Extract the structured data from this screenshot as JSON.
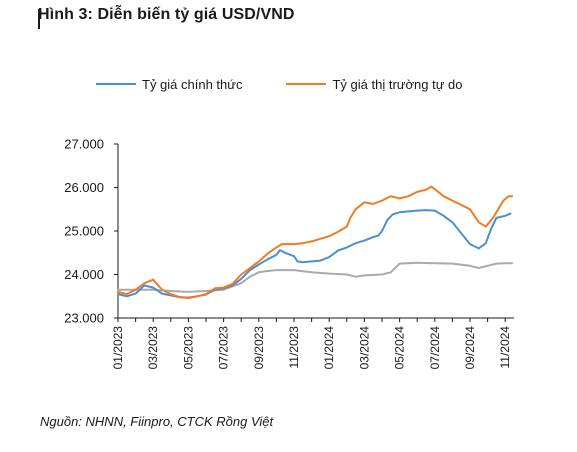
{
  "header": {
    "title": "Hình 3: Diễn biến tỷ giá USD/VND"
  },
  "source": "Nguồn: NHNN, Fiinpro, CTCK Rồng Việt",
  "colors": {
    "official": "#4a8fd0",
    "free_market": "#f07c22",
    "grey_series": "#aaaaaa",
    "axis": "#1a1a1a"
  },
  "chart_data": {
    "type": "line",
    "title": "Hình 3: Diễn biến tỷ giá USD/VND",
    "xlabel": "",
    "ylabel": "",
    "xlim": [
      0,
      22.5
    ],
    "ylim": [
      23000,
      27000
    ],
    "yticks": [
      "23.000",
      "24.000",
      "25.000",
      "26.000",
      "27.000"
    ],
    "ytick_values": [
      23000,
      24000,
      25000,
      26000,
      27000
    ],
    "xticks": [
      "01/2023",
      "03/2023",
      "05/2023",
      "07/2023",
      "09/2023",
      "11/2023",
      "01/2024",
      "03/2024",
      "05/2024",
      "07/2024",
      "09/2024",
      "11/2024"
    ],
    "xtick_values": [
      0,
      2,
      4,
      6,
      8,
      10,
      12,
      14,
      16,
      18,
      20,
      22
    ],
    "legend_position": "top",
    "grid": false,
    "series": [
      {
        "name": "Tỷ giá chính thức",
        "color": "#4a8fd0",
        "points": [
          [
            0,
            23550
          ],
          [
            0.5,
            23500
          ],
          [
            1,
            23560
          ],
          [
            1.5,
            23750
          ],
          [
            2,
            23700
          ],
          [
            2.5,
            23560
          ],
          [
            3,
            23520
          ],
          [
            3.5,
            23480
          ],
          [
            4,
            23470
          ],
          [
            4.5,
            23500
          ],
          [
            5,
            23540
          ],
          [
            5.5,
            23650
          ],
          [
            6,
            23680
          ],
          [
            6.5,
            23750
          ],
          [
            7,
            23900
          ],
          [
            7.5,
            24100
          ],
          [
            8,
            24230
          ],
          [
            8.5,
            24350
          ],
          [
            9,
            24450
          ],
          [
            9.2,
            24560
          ],
          [
            9.5,
            24500
          ],
          [
            10,
            24420
          ],
          [
            10.2,
            24300
          ],
          [
            10.5,
            24280
          ],
          [
            11,
            24300
          ],
          [
            11.5,
            24320
          ],
          [
            12,
            24400
          ],
          [
            12.5,
            24550
          ],
          [
            13,
            24620
          ],
          [
            13.5,
            24720
          ],
          [
            14,
            24780
          ],
          [
            14.5,
            24860
          ],
          [
            14.8,
            24900
          ],
          [
            15,
            25000
          ],
          [
            15.3,
            25250
          ],
          [
            15.6,
            25380
          ],
          [
            16,
            25430
          ],
          [
            16.5,
            25450
          ],
          [
            17,
            25470
          ],
          [
            17.5,
            25480
          ],
          [
            18,
            25470
          ],
          [
            18.5,
            25350
          ],
          [
            19,
            25200
          ],
          [
            19.5,
            24950
          ],
          [
            20,
            24700
          ],
          [
            20.5,
            24600
          ],
          [
            20.9,
            24720
          ],
          [
            21.2,
            25050
          ],
          [
            21.5,
            25300
          ],
          [
            22,
            25350
          ],
          [
            22.3,
            25400
          ]
        ]
      },
      {
        "name": "Tỷ giá thị trường tự do",
        "color": "#f07c22",
        "points": [
          [
            0,
            23600
          ],
          [
            0.5,
            23550
          ],
          [
            1,
            23650
          ],
          [
            1.5,
            23800
          ],
          [
            2,
            23880
          ],
          [
            2.5,
            23650
          ],
          [
            3,
            23550
          ],
          [
            3.5,
            23480
          ],
          [
            4,
            23460
          ],
          [
            4.5,
            23500
          ],
          [
            5,
            23550
          ],
          [
            5.5,
            23680
          ],
          [
            6,
            23700
          ],
          [
            6.5,
            23780
          ],
          [
            7,
            24000
          ],
          [
            7.5,
            24150
          ],
          [
            8,
            24300
          ],
          [
            8.5,
            24480
          ],
          [
            9,
            24620
          ],
          [
            9.3,
            24700
          ],
          [
            10,
            24700
          ],
          [
            10.5,
            24720
          ],
          [
            11,
            24760
          ],
          [
            11.5,
            24820
          ],
          [
            12,
            24880
          ],
          [
            12.5,
            24980
          ],
          [
            13,
            25100
          ],
          [
            13.2,
            25300
          ],
          [
            13.5,
            25500
          ],
          [
            14,
            25660
          ],
          [
            14.5,
            25620
          ],
          [
            15,
            25700
          ],
          [
            15.5,
            25800
          ],
          [
            16,
            25750
          ],
          [
            16.5,
            25800
          ],
          [
            17,
            25900
          ],
          [
            17.5,
            25950
          ],
          [
            17.8,
            26020
          ],
          [
            18.2,
            25900
          ],
          [
            18.5,
            25800
          ],
          [
            19,
            25700
          ],
          [
            19.5,
            25600
          ],
          [
            20,
            25500
          ],
          [
            20.5,
            25200
          ],
          [
            20.9,
            25100
          ],
          [
            21.3,
            25300
          ],
          [
            21.6,
            25500
          ],
          [
            21.9,
            25700
          ],
          [
            22.2,
            25800
          ],
          [
            22.4,
            25800
          ]
        ]
      },
      {
        "color": "#aaaaaa",
        "points": [
          [
            0,
            23650
          ],
          [
            1,
            23650
          ],
          [
            2,
            23650
          ],
          [
            3,
            23620
          ],
          [
            4,
            23600
          ],
          [
            5,
            23620
          ],
          [
            6,
            23650
          ],
          [
            7,
            23800
          ],
          [
            7.5,
            23950
          ],
          [
            8,
            24050
          ],
          [
            8.5,
            24080
          ],
          [
            9,
            24100
          ],
          [
            10,
            24100
          ],
          [
            11,
            24050
          ],
          [
            12,
            24020
          ],
          [
            13,
            24000
          ],
          [
            13.5,
            23950
          ],
          [
            14,
            23980
          ],
          [
            15,
            24000
          ],
          [
            15.5,
            24050
          ],
          [
            16,
            24250
          ],
          [
            17,
            24270
          ],
          [
            18,
            24260
          ],
          [
            19,
            24250
          ],
          [
            20,
            24200
          ],
          [
            20.5,
            24150
          ],
          [
            21,
            24200
          ],
          [
            21.5,
            24250
          ],
          [
            22,
            24260
          ],
          [
            22.4,
            24260
          ]
        ]
      }
    ]
  }
}
